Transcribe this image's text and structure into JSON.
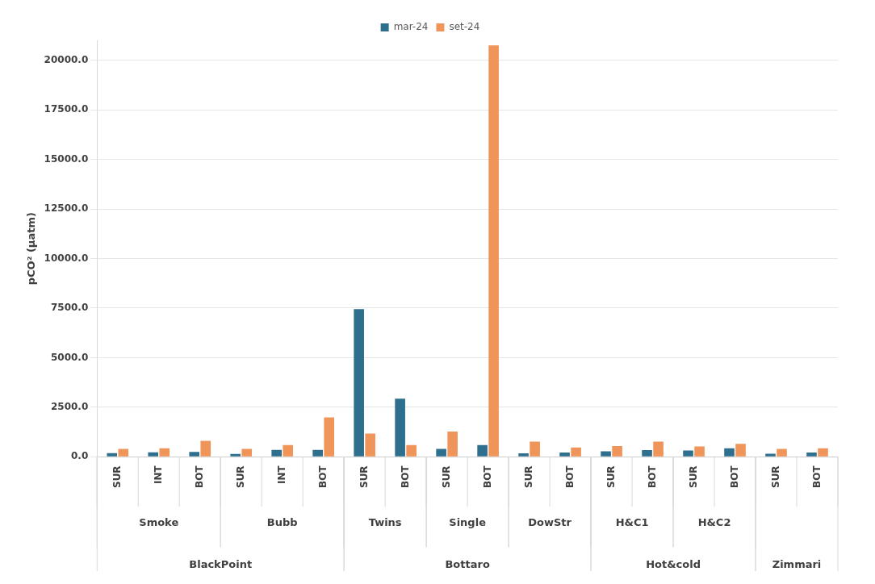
{
  "chart_data": {
    "type": "bar",
    "ylabel": "pCO² (µatm)",
    "categories": [
      "SUR",
      "INT",
      "BOT",
      "SUR",
      "INT",
      "BOT",
      "SUR",
      "BOT",
      "SUR",
      "BOT",
      "SUR",
      "BOT",
      "SUR",
      "BOT",
      "SUR",
      "BOT",
      "SUR",
      "BOT"
    ],
    "series": [
      {
        "name": "mar-24",
        "color": "#2e6f8e",
        "values": [
          190,
          230,
          250,
          150,
          350,
          350,
          7450,
          2930,
          400,
          590,
          180,
          220,
          280,
          340,
          320,
          430,
          160,
          220
        ]
      },
      {
        "name": "set-24",
        "color": "#f0955a",
        "values": [
          400,
          430,
          810,
          400,
          590,
          1990,
          1170,
          590,
          1280,
          20750,
          770,
          470,
          540,
          770,
          520,
          660,
          400,
          430
        ]
      }
    ],
    "annotations": [
      "Smoke",
      "Bubb",
      "Twins",
      "Single",
      "DowStr",
      "H&C1",
      "H&C2",
      "BlackPoint",
      "Bottaro",
      "Hot&cold",
      "Zimmari"
    ],
    "ylim": [
      0,
      21000
    ],
    "yticks": [
      {
        "value": 0,
        "label": "0.0"
      },
      {
        "value": 2500,
        "label": "2500.0"
      },
      {
        "value": 5000,
        "label": "5000.0"
      },
      {
        "value": 7500,
        "label": "7500.0"
      },
      {
        "value": 10000,
        "label": "10000.0"
      },
      {
        "value": 12500,
        "label": "12500.0"
      },
      {
        "value": 15000,
        "label": "15000.0"
      },
      {
        "value": 17500,
        "label": "17500.0"
      },
      {
        "value": 20000,
        "label": "20000.0"
      }
    ],
    "grid": "y",
    "legend": "top"
  }
}
